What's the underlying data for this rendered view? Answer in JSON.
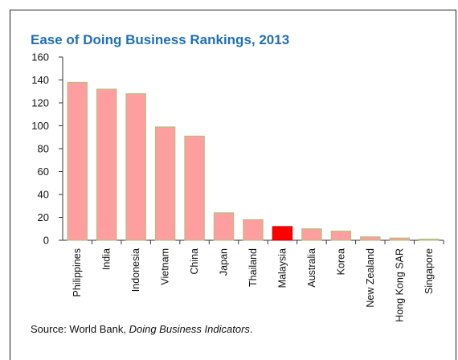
{
  "chart_data": {
    "type": "bar",
    "title": "Ease of Doing Business Rankings, 2013",
    "xlabel": "",
    "ylabel": "",
    "ylim": [
      0,
      160
    ],
    "yticks": [
      0,
      20,
      40,
      60,
      80,
      100,
      120,
      140,
      160
    ],
    "grid": false,
    "categories": [
      "Philippines",
      "India",
      "Indonesia",
      "Vietnam",
      "China",
      "Japan",
      "Thailand",
      "Malaysia",
      "Australia",
      "Korea",
      "New Zealand",
      "Hong Kong SAR",
      "Singapore"
    ],
    "values": [
      138,
      132,
      128,
      99,
      91,
      24,
      18,
      12,
      10,
      8,
      3,
      2,
      1
    ],
    "colors": {
      "bar": "#ff9e9e",
      "bar_border": "#a8c27a",
      "highlight": "#ff0000",
      "highlight_category": "Malaysia",
      "title": "#1f6fb5"
    }
  },
  "source": {
    "prefix": "Source: World Bank, ",
    "italic": "Doing Business Indicators",
    "suffix": "."
  }
}
